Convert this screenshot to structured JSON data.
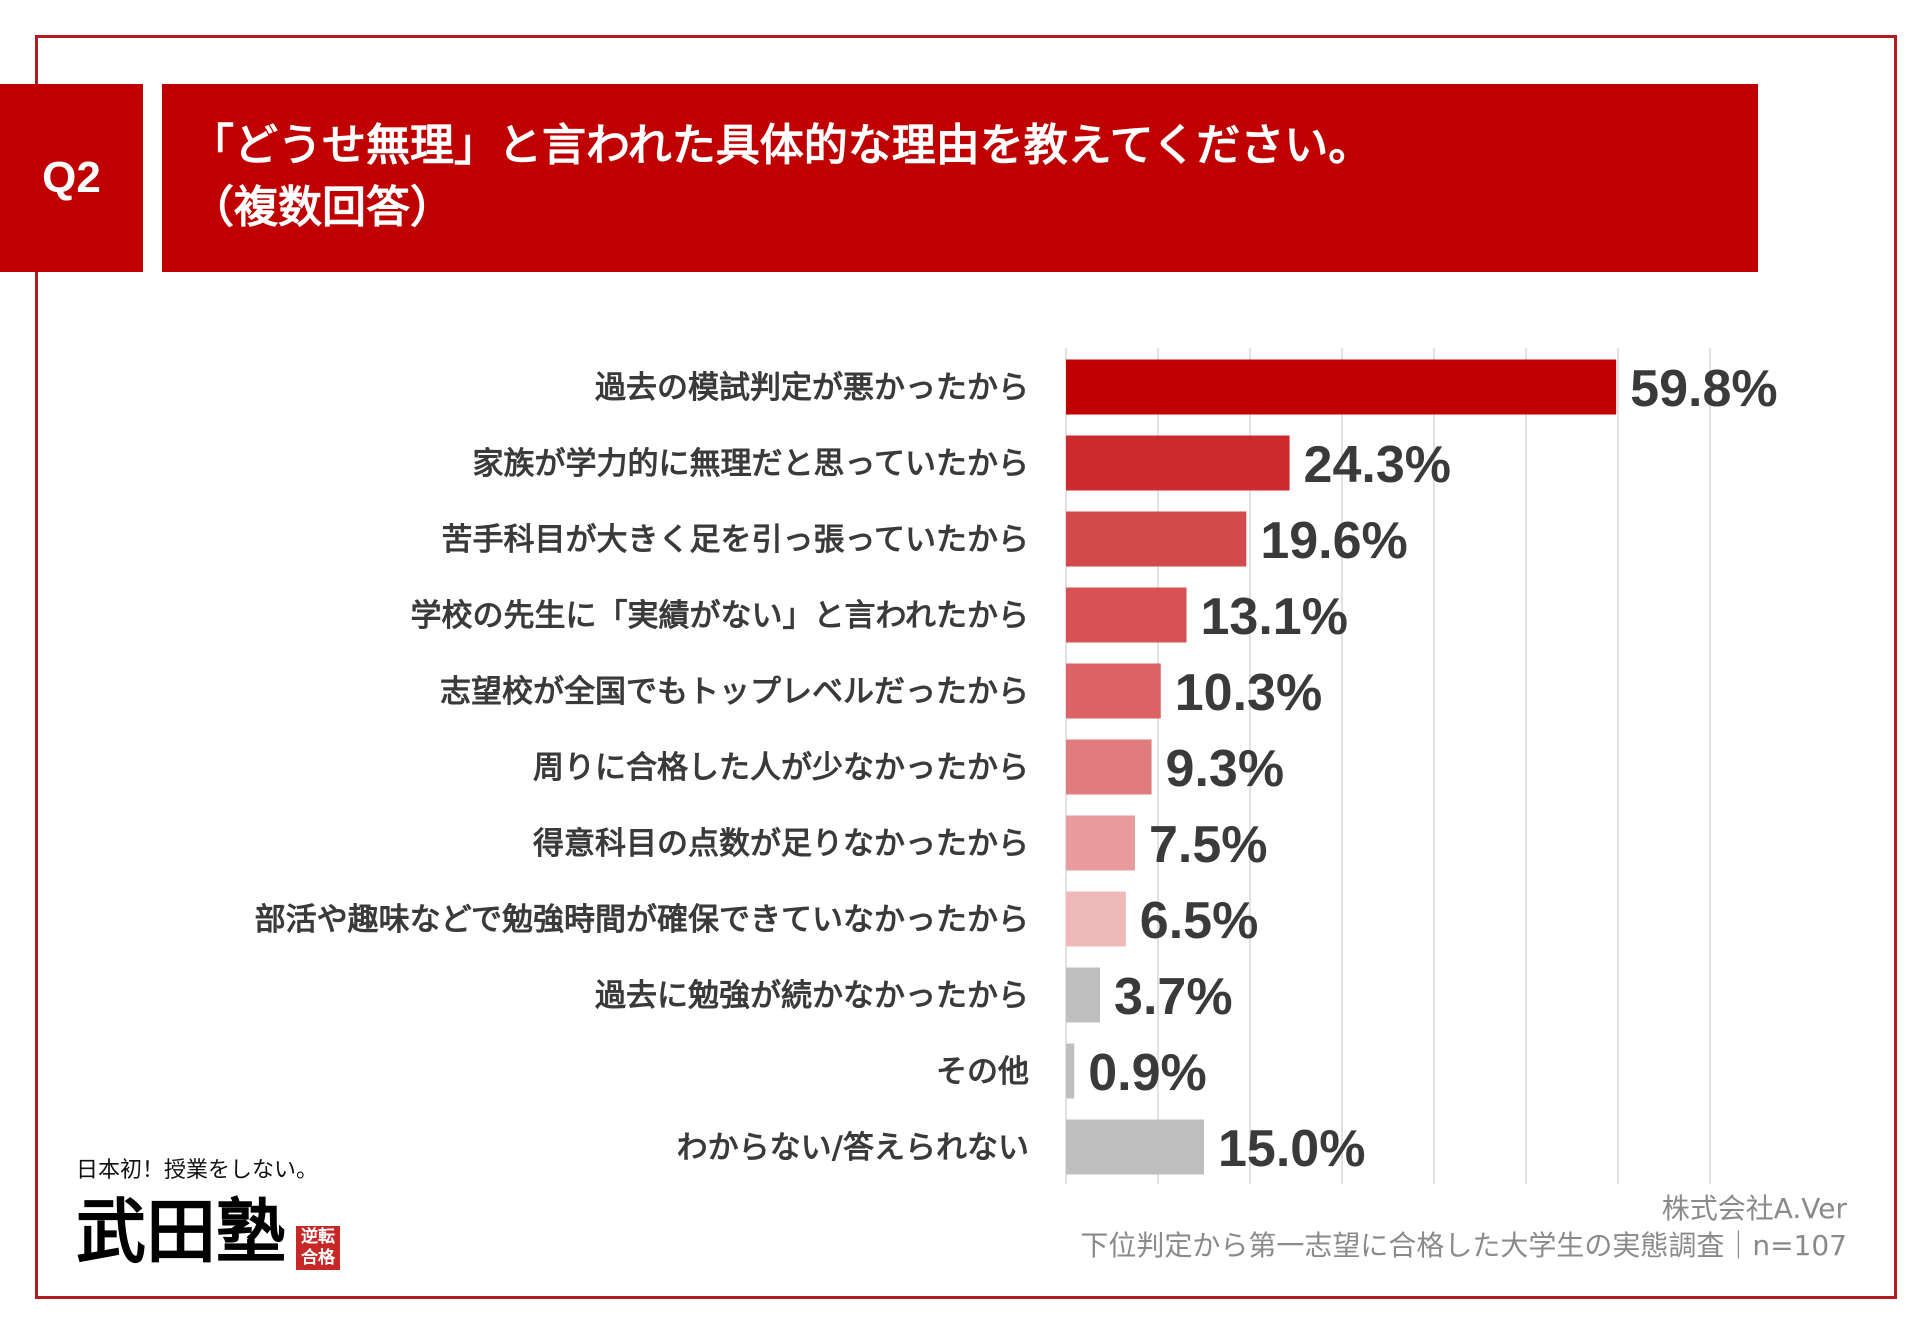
{
  "header": {
    "q_label": "Q2",
    "title_line1": "「どうせ無理」と言われた具体的な理由を教えてください。",
    "title_line2": "（複数回答）"
  },
  "chart_data": {
    "type": "bar",
    "orientation": "horizontal",
    "title": "「どうせ無理」と言われた具体的な理由を教えてください。（複数回答）",
    "categories": [
      "過去の模試判定が悪かったから",
      "家族が学力的に無理だと思っていたから",
      "苦手科目が大きく足を引っ張っていたから",
      "学校の先生に「実績がない」と言われたから",
      "志望校が全国でもトップレベルだったから",
      "周りに合格した人が少なかったから",
      "得意科目の点数が足りなかったから",
      "部活や趣味などで勉強時間が確保できていなかったから",
      "過去に勉強が続かなかったから",
      "その他",
      "わからない/答えられない"
    ],
    "values": [
      59.8,
      24.3,
      19.6,
      13.1,
      10.3,
      9.3,
      7.5,
      6.5,
      3.7,
      0.9,
      15.0
    ],
    "value_labels": [
      "59.8%",
      "24.3%",
      "19.6%",
      "13.1%",
      "10.3%",
      "9.3%",
      "7.5%",
      "6.5%",
      "3.7%",
      "0.9%",
      "15.0%"
    ],
    "colors": [
      "#c00000",
      "#cc2a2d",
      "#d44a4c",
      "#d85255",
      "#dc6265",
      "#e07c7e",
      "#e89c9d",
      "#efb9b9",
      "#bfbfbf",
      "#bfbfbf",
      "#bfbfbf"
    ],
    "xlim": [
      0,
      70
    ],
    "grid_step": 10,
    "grid": true,
    "xlabel": "",
    "ylabel": ""
  },
  "footer": {
    "company": "株式会社A.Ver",
    "survey": "下位判定から第一志望に合格した大学生の実態調査｜n=107"
  },
  "logo": {
    "tagline": "日本初！授業をしない。",
    "name": "武田塾",
    "stamp": "逆転合格"
  }
}
